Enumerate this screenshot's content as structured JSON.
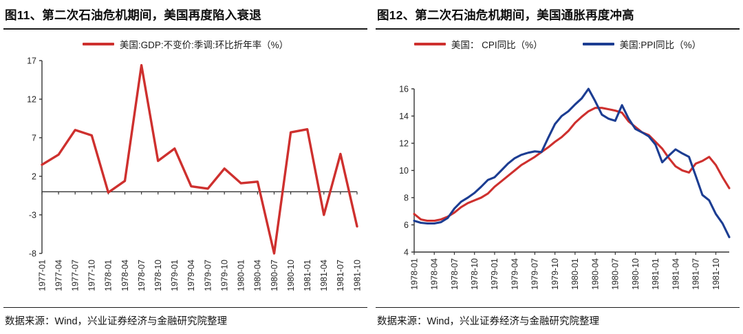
{
  "panels": [
    {
      "title": "图11、第二次石油危机期间，美国再度陷入衰退",
      "legend": [
        {
          "label": "美国:GDP:不变价:季调:环比折年率（%）",
          "color": "#CE302E"
        }
      ],
      "source": "数据来源：Wind，兴业证券经济与金融研究院整理"
    },
    {
      "title": "图12、第二次石油危机期间，美国通胀再度冲高",
      "legend": [
        {
          "label": "美国： CPI同比（%）",
          "color": "#CE302E"
        },
        {
          "label": "美国:PPI同比（%）",
          "color": "#1C3D92"
        }
      ],
      "source": "数据来源：Wind，兴业证券经济与金融研究院整理"
    }
  ],
  "colors": {
    "red_line": "#CE302E",
    "blue_line": "#1C3D92",
    "axis": "#333333",
    "tick_text": "#262626"
  },
  "chart_data": [
    {
      "type": "line",
      "title": "图11、第二次石油危机期间，美国再度陷入衰退",
      "categories": [
        "1977-01",
        "1977-04",
        "1977-07",
        "1977-10",
        "1978-01",
        "1978-04",
        "1978-07",
        "1978-10",
        "1979-01",
        "1979-04",
        "1979-07",
        "1979-10",
        "1980-01",
        "1980-04",
        "1980-07",
        "1980-10",
        "1981-01",
        "1981-04",
        "1981-07",
        "1981-10"
      ],
      "series": [
        {
          "name": "美国:GDP:不变价:季调:环比折年率（%）",
          "color": "#CE302E",
          "values": [
            3.5,
            4.8,
            8.0,
            7.3,
            -0.1,
            1.4,
            16.4,
            4.0,
            5.6,
            0.7,
            0.4,
            3.0,
            1.1,
            1.3,
            -8.0,
            7.7,
            8.1,
            -3.0,
            4.9,
            -4.5
          ]
        }
      ],
      "ylim": [
        -8,
        17
      ],
      "y_ticks": [
        17,
        12,
        7,
        2,
        -3,
        -8
      ],
      "x_axis_at": 0,
      "label_every": 1,
      "grid": false,
      "legend_position": "top",
      "xlabel": "",
      "ylabel": ""
    },
    {
      "type": "line",
      "title": "图12、第二次石油危机期间，美国通胀再度冲高",
      "categories": [
        "1978-01",
        "1978-02",
        "1978-03",
        "1978-04",
        "1978-05",
        "1978-06",
        "1978-07",
        "1978-08",
        "1978-09",
        "1978-10",
        "1978-11",
        "1978-12",
        "1979-01",
        "1979-02",
        "1979-03",
        "1979-04",
        "1979-05",
        "1979-06",
        "1979-07",
        "1979-08",
        "1979-09",
        "1979-10",
        "1979-11",
        "1979-12",
        "1980-01",
        "1980-02",
        "1980-03",
        "1980-04",
        "1980-05",
        "1980-06",
        "1980-07",
        "1980-08",
        "1980-09",
        "1980-10",
        "1980-11",
        "1980-12",
        "1981-01",
        "1981-02",
        "1981-03",
        "1981-04",
        "1981-05",
        "1981-06",
        "1981-07",
        "1981-08",
        "1981-09",
        "1981-10",
        "1981-11",
        "1981-12"
      ],
      "series": [
        {
          "name": "美国： CPI同比（%）",
          "color": "#CE302E",
          "values": [
            6.8,
            6.4,
            6.3,
            6.3,
            6.4,
            6.6,
            6.9,
            7.3,
            7.6,
            7.8,
            8.0,
            8.3,
            8.8,
            9.2,
            9.6,
            10.0,
            10.4,
            10.7,
            11.0,
            11.35,
            11.7,
            12.1,
            12.45,
            12.9,
            13.5,
            13.95,
            14.35,
            14.6,
            14.6,
            14.5,
            14.4,
            14.25,
            13.6,
            13.2,
            12.8,
            12.6,
            12.1,
            11.6,
            10.9,
            10.3,
            10.0,
            9.85,
            10.5,
            10.7,
            11.0,
            10.4,
            9.5,
            8.7
          ]
        },
        {
          "name": "美国:PPI同比（%）",
          "color": "#1C3D92",
          "values": [
            6.3,
            6.15,
            6.1,
            6.1,
            6.2,
            6.5,
            7.2,
            7.7,
            8.0,
            8.35,
            8.8,
            9.3,
            9.5,
            10.0,
            10.5,
            10.9,
            11.15,
            11.3,
            11.4,
            11.35,
            12.4,
            13.4,
            14.0,
            14.35,
            14.85,
            15.3,
            16.0,
            15.1,
            14.1,
            13.8,
            13.65,
            14.8,
            13.8,
            13.05,
            12.8,
            12.5,
            11.9,
            10.6,
            11.1,
            11.55,
            11.25,
            11.0,
            9.6,
            8.2,
            7.8,
            6.8,
            6.1,
            5.1
          ]
        }
      ],
      "ylim": [
        4,
        16
      ],
      "y_ticks": [
        16,
        14,
        12,
        10,
        8,
        6,
        4
      ],
      "x_axis_at": 4,
      "label_every": 3,
      "grid": false,
      "legend_position": "top",
      "xlabel": "",
      "ylabel": ""
    }
  ]
}
